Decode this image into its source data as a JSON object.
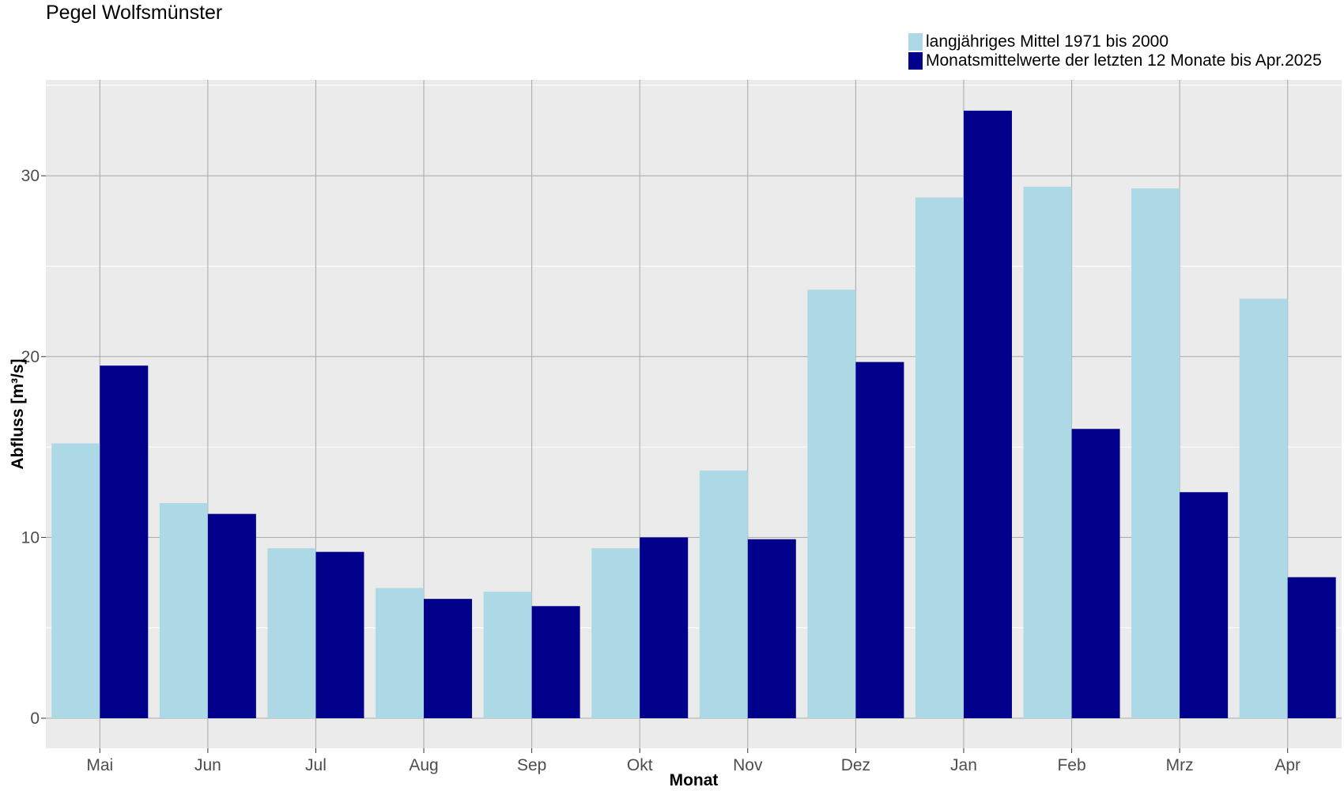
{
  "chart_data": {
    "type": "bar",
    "title": "Pegel Wolfsmünster",
    "xlabel": "Monat",
    "ylabel": "Abfluss [m³/s]",
    "categories": [
      "Mai",
      "Jun",
      "Jul",
      "Aug",
      "Sep",
      "Okt",
      "Nov",
      "Dez",
      "Jan",
      "Feb",
      "Mrz",
      "Apr"
    ],
    "series": [
      {
        "name": "langjähriges Mittel 1971 bis 2000",
        "color": "#add8e6",
        "values": [
          15.2,
          11.9,
          9.4,
          7.2,
          7.0,
          9.4,
          13.7,
          23.7,
          28.8,
          29.4,
          29.3,
          23.2
        ]
      },
      {
        "name": "Monatsmittelwerte der letzten 12 Monate bis Apr.2025",
        "color": "#00008b",
        "values": [
          19.5,
          11.3,
          9.2,
          6.6,
          6.2,
          10.0,
          9.9,
          19.7,
          33.6,
          16.0,
          12.5,
          7.8
        ]
      }
    ],
    "ylim": [
      0,
      35
    ],
    "yticks": [
      0,
      10,
      20,
      30
    ],
    "grid": true,
    "legend_position": "top-right",
    "panel_color": "#ebebeb"
  }
}
